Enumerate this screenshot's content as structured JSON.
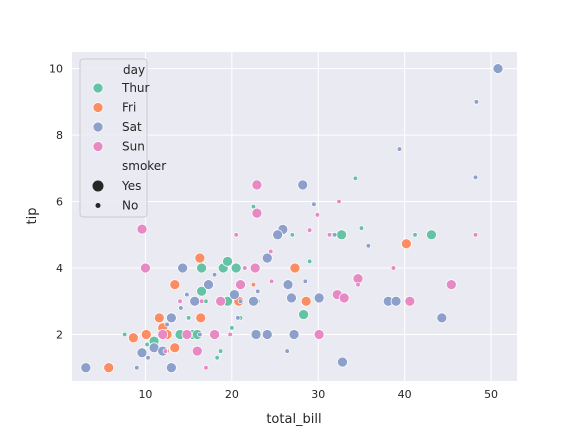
{
  "chart_data": {
    "type": "scatter",
    "xlabel": "total_bill",
    "ylabel": "tip",
    "xlim": [
      1.5,
      53
    ],
    "ylim": [
      0.6,
      10.5
    ],
    "xticks": [
      10,
      20,
      30,
      40,
      50
    ],
    "yticks": [
      2,
      4,
      6,
      8,
      10
    ],
    "grid": true,
    "legend": {
      "placement": "top-left",
      "hue_title": "day",
      "size_title": "smoker",
      "hue_entries": [
        {
          "label": "Thur",
          "color": "#66c2a5"
        },
        {
          "label": "Fri",
          "color": "#fc8d62"
        },
        {
          "label": "Sat",
          "color": "#8da0cb"
        },
        {
          "label": "Sun",
          "color": "#e78ac3"
        }
      ],
      "size_entries": [
        {
          "label": "Yes",
          "size": "large"
        },
        {
          "label": "No",
          "size": "small"
        }
      ]
    },
    "series": [
      {
        "name": "Thur",
        "color": "#66c2a5",
        "points": [
          {
            "x": 19.0,
            "y": 4.0,
            "smoker": "Yes"
          },
          {
            "x": 20.5,
            "y": 4.0,
            "smoker": "Yes"
          },
          {
            "x": 19.5,
            "y": 4.2,
            "smoker": "Yes"
          },
          {
            "x": 16.5,
            "y": 4.0,
            "smoker": "Yes"
          },
          {
            "x": 16.5,
            "y": 3.3,
            "smoker": "Yes"
          },
          {
            "x": 32.7,
            "y": 5.0,
            "smoker": "Yes"
          },
          {
            "x": 43.1,
            "y": 5.0,
            "smoker": "Yes"
          },
          {
            "x": 28.3,
            "y": 2.6,
            "smoker": "Yes"
          },
          {
            "x": 19.5,
            "y": 3.0,
            "smoker": "Yes"
          },
          {
            "x": 15.5,
            "y": 2.0,
            "smoker": "Yes"
          },
          {
            "x": 12.5,
            "y": 2.0,
            "smoker": "Yes"
          },
          {
            "x": 11.0,
            "y": 1.8,
            "smoker": "Yes"
          },
          {
            "x": 13.0,
            "y": 2.5,
            "smoker": "Yes"
          },
          {
            "x": 16.0,
            "y": 2.0,
            "smoker": "Yes"
          },
          {
            "x": 14.0,
            "y": 2.0,
            "smoker": "Yes"
          },
          {
            "x": 34.3,
            "y": 6.7,
            "smoker": "No"
          },
          {
            "x": 22.5,
            "y": 5.85,
            "smoker": "No"
          },
          {
            "x": 35.0,
            "y": 5.2,
            "smoker": "No"
          },
          {
            "x": 41.2,
            "y": 5.0,
            "smoker": "No"
          },
          {
            "x": 31.5,
            "y": 5.0,
            "smoker": "No"
          },
          {
            "x": 27.0,
            "y": 5.0,
            "smoker": "No"
          },
          {
            "x": 29.0,
            "y": 4.2,
            "smoker": "No"
          },
          {
            "x": 23.0,
            "y": 3.0,
            "smoker": "No"
          },
          {
            "x": 20.0,
            "y": 2.2,
            "smoker": "No"
          },
          {
            "x": 7.6,
            "y": 2.0,
            "smoker": "No"
          },
          {
            "x": 10.2,
            "y": 1.7,
            "smoker": "No"
          },
          {
            "x": 18.7,
            "y": 1.5,
            "smoker": "No"
          },
          {
            "x": 18.3,
            "y": 1.3,
            "smoker": "No"
          },
          {
            "x": 15.0,
            "y": 2.5,
            "smoker": "No"
          },
          {
            "x": 17.0,
            "y": 3.0,
            "smoker": "No"
          },
          {
            "x": 12.0,
            "y": 1.5,
            "smoker": "No"
          },
          {
            "x": 21.0,
            "y": 2.5,
            "smoker": "No"
          }
        ]
      },
      {
        "name": "Fri",
        "color": "#fc8d62",
        "points": [
          {
            "x": 40.2,
            "y": 4.73,
            "smoker": "Yes"
          },
          {
            "x": 16.3,
            "y": 4.3,
            "smoker": "Yes"
          },
          {
            "x": 27.3,
            "y": 4.0,
            "smoker": "Yes"
          },
          {
            "x": 13.4,
            "y": 3.5,
            "smoker": "Yes"
          },
          {
            "x": 16.4,
            "y": 2.5,
            "smoker": "Yes"
          },
          {
            "x": 11.6,
            "y": 2.5,
            "smoker": "Yes"
          },
          {
            "x": 12.0,
            "y": 2.2,
            "smoker": "Yes"
          },
          {
            "x": 10.1,
            "y": 2.0,
            "smoker": "Yes"
          },
          {
            "x": 8.6,
            "y": 1.9,
            "smoker": "Yes"
          },
          {
            "x": 13.4,
            "y": 1.6,
            "smoker": "Yes"
          },
          {
            "x": 5.75,
            "y": 1.0,
            "smoker": "Yes"
          },
          {
            "x": 20.8,
            "y": 3.0,
            "smoker": "Yes"
          },
          {
            "x": 28.6,
            "y": 3.0,
            "smoker": "Yes"
          },
          {
            "x": 12.5,
            "y": 2.0,
            "smoker": "Yes"
          },
          {
            "x": 22.5,
            "y": 3.5,
            "smoker": "No"
          },
          {
            "x": 15.4,
            "y": 3.0,
            "smoker": "No"
          },
          {
            "x": 12.5,
            "y": 1.5,
            "smoker": "No"
          }
        ]
      },
      {
        "name": "Sat",
        "color": "#8da0cb",
        "points": [
          {
            "x": 50.8,
            "y": 10.0,
            "smoker": "Yes"
          },
          {
            "x": 28.2,
            "y": 6.5,
            "smoker": "Yes"
          },
          {
            "x": 25.9,
            "y": 5.16,
            "smoker": "Yes"
          },
          {
            "x": 25.3,
            "y": 5.0,
            "smoker": "Yes"
          },
          {
            "x": 24.1,
            "y": 4.3,
            "smoker": "Yes"
          },
          {
            "x": 26.5,
            "y": 3.5,
            "smoker": "Yes"
          },
          {
            "x": 30.1,
            "y": 3.1,
            "smoker": "Yes"
          },
          {
            "x": 26.9,
            "y": 3.1,
            "smoker": "Yes"
          },
          {
            "x": 38.1,
            "y": 3.0,
            "smoker": "Yes"
          },
          {
            "x": 39.0,
            "y": 3.0,
            "smoker": "Yes"
          },
          {
            "x": 44.3,
            "y": 2.5,
            "smoker": "Yes"
          },
          {
            "x": 32.8,
            "y": 1.17,
            "smoker": "Yes"
          },
          {
            "x": 30.1,
            "y": 2.0,
            "smoker": "Yes"
          },
          {
            "x": 27.2,
            "y": 2.0,
            "smoker": "Yes"
          },
          {
            "x": 24.1,
            "y": 2.0,
            "smoker": "Yes"
          },
          {
            "x": 22.8,
            "y": 2.0,
            "smoker": "Yes"
          },
          {
            "x": 22.5,
            "y": 3.0,
            "smoker": "Yes"
          },
          {
            "x": 17.3,
            "y": 3.5,
            "smoker": "Yes"
          },
          {
            "x": 14.3,
            "y": 4.0,
            "smoker": "Yes"
          },
          {
            "x": 15.7,
            "y": 3.0,
            "smoker": "Yes"
          },
          {
            "x": 20.3,
            "y": 3.2,
            "smoker": "Yes"
          },
          {
            "x": 13.0,
            "y": 2.5,
            "smoker": "Yes"
          },
          {
            "x": 11.0,
            "y": 1.6,
            "smoker": "Yes"
          },
          {
            "x": 9.6,
            "y": 1.45,
            "smoker": "Yes"
          },
          {
            "x": 13.0,
            "y": 1.0,
            "smoker": "Yes"
          },
          {
            "x": 3.1,
            "y": 1.0,
            "smoker": "Yes"
          },
          {
            "x": 12.0,
            "y": 1.5,
            "smoker": "Yes"
          },
          {
            "x": 48.3,
            "y": 9.0,
            "smoker": "No"
          },
          {
            "x": 39.4,
            "y": 7.58,
            "smoker": "No"
          },
          {
            "x": 48.2,
            "y": 6.73,
            "smoker": "No"
          },
          {
            "x": 29.5,
            "y": 5.92,
            "smoker": "No"
          },
          {
            "x": 31.9,
            "y": 5.0,
            "smoker": "No"
          },
          {
            "x": 35.8,
            "y": 4.67,
            "smoker": "No"
          },
          {
            "x": 28.5,
            "y": 3.6,
            "smoker": "No"
          },
          {
            "x": 23.0,
            "y": 3.3,
            "smoker": "No"
          },
          {
            "x": 14.1,
            "y": 2.8,
            "smoker": "No"
          },
          {
            "x": 26.4,
            "y": 1.5,
            "smoker": "No"
          },
          {
            "x": 18.0,
            "y": 3.8,
            "smoker": "No"
          },
          {
            "x": 16.3,
            "y": 2.0,
            "smoker": "No"
          },
          {
            "x": 10.3,
            "y": 1.3,
            "smoker": "No"
          },
          {
            "x": 12.5,
            "y": 2.3,
            "smoker": "No"
          },
          {
            "x": 14.8,
            "y": 3.2,
            "smoker": "No"
          },
          {
            "x": 20.7,
            "y": 2.5,
            "smoker": "No"
          },
          {
            "x": 9.0,
            "y": 1.0,
            "smoker": "No"
          },
          {
            "x": 21.0,
            "y": 3.0,
            "smoker": "No"
          }
        ]
      },
      {
        "name": "Sun",
        "color": "#e78ac3",
        "points": [
          {
            "x": 22.9,
            "y": 6.5,
            "smoker": "Yes"
          },
          {
            "x": 22.9,
            "y": 5.65,
            "smoker": "Yes"
          },
          {
            "x": 9.6,
            "y": 5.17,
            "smoker": "Yes"
          },
          {
            "x": 10.0,
            "y": 4.0,
            "smoker": "Yes"
          },
          {
            "x": 22.7,
            "y": 4.0,
            "smoker": "Yes"
          },
          {
            "x": 34.6,
            "y": 3.68,
            "smoker": "Yes"
          },
          {
            "x": 45.4,
            "y": 3.5,
            "smoker": "Yes"
          },
          {
            "x": 40.6,
            "y": 3.0,
            "smoker": "Yes"
          },
          {
            "x": 32.2,
            "y": 3.2,
            "smoker": "Yes"
          },
          {
            "x": 33.0,
            "y": 3.1,
            "smoker": "Yes"
          },
          {
            "x": 21.0,
            "y": 3.5,
            "smoker": "Yes"
          },
          {
            "x": 18.7,
            "y": 3.0,
            "smoker": "Yes"
          },
          {
            "x": 18.0,
            "y": 2.0,
            "smoker": "Yes"
          },
          {
            "x": 16.0,
            "y": 1.5,
            "smoker": "Yes"
          },
          {
            "x": 30.1,
            "y": 2.0,
            "smoker": "Yes"
          },
          {
            "x": 12.0,
            "y": 2.0,
            "smoker": "Yes"
          },
          {
            "x": 14.8,
            "y": 2.0,
            "smoker": "Yes"
          },
          {
            "x": 48.2,
            "y": 5.0,
            "smoker": "No"
          },
          {
            "x": 31.3,
            "y": 5.0,
            "smoker": "No"
          },
          {
            "x": 29.9,
            "y": 5.6,
            "smoker": "No"
          },
          {
            "x": 29.0,
            "y": 5.14,
            "smoker": "No"
          },
          {
            "x": 32.4,
            "y": 6.0,
            "smoker": "No"
          },
          {
            "x": 38.7,
            "y": 4.0,
            "smoker": "No"
          },
          {
            "x": 24.5,
            "y": 4.5,
            "smoker": "No"
          },
          {
            "x": 21.5,
            "y": 4.0,
            "smoker": "No"
          },
          {
            "x": 34.6,
            "y": 3.5,
            "smoker": "No"
          },
          {
            "x": 17.0,
            "y": 1.0,
            "smoker": "No"
          },
          {
            "x": 12.3,
            "y": 1.5,
            "smoker": "No"
          },
          {
            "x": 20.5,
            "y": 5.0,
            "smoker": "No"
          },
          {
            "x": 16.5,
            "y": 3.0,
            "smoker": "No"
          },
          {
            "x": 14.0,
            "y": 3.0,
            "smoker": "No"
          },
          {
            "x": 19.8,
            "y": 2.0,
            "smoker": "No"
          },
          {
            "x": 24.6,
            "y": 3.6,
            "smoker": "No"
          }
        ]
      }
    ]
  }
}
